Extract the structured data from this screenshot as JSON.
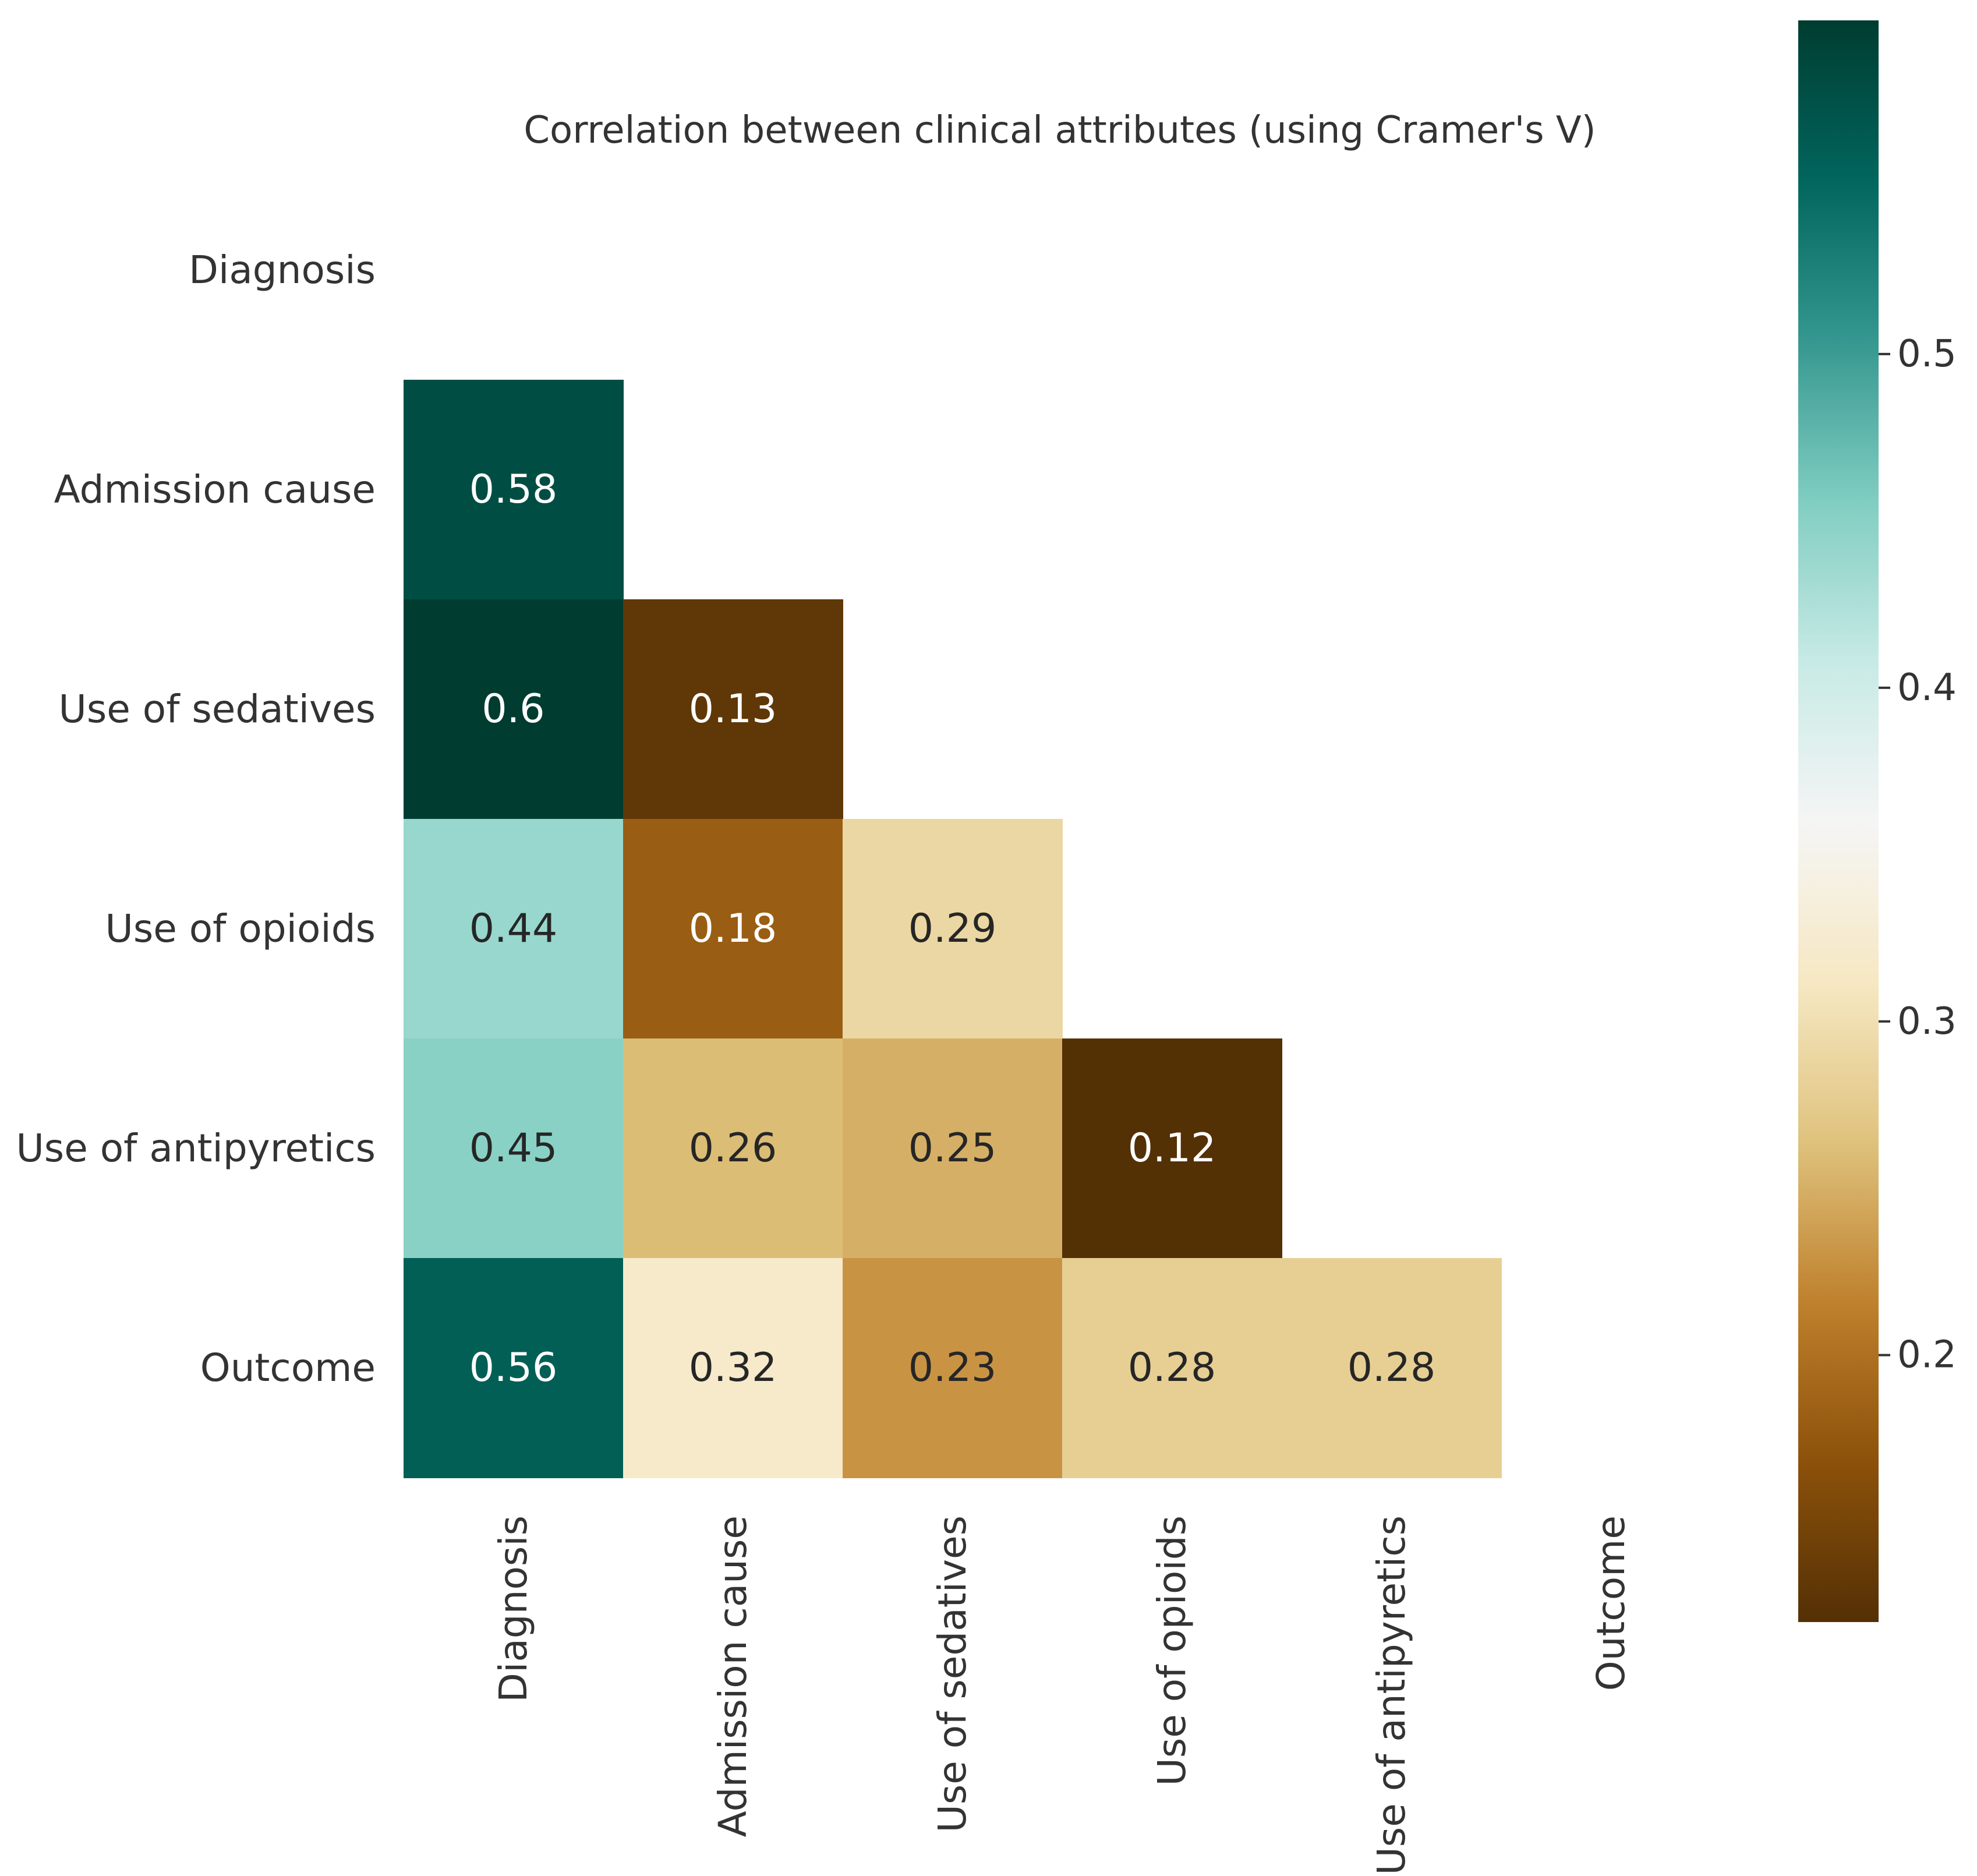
{
  "chart_data": {
    "type": "heatmap",
    "title": "Correlation between clinical attributes (using Cramer's V)",
    "variables": [
      "Diagnosis",
      "Admission cause",
      "Use of sedatives",
      "Use of opioids",
      "Use of antipyretics",
      "Outcome"
    ],
    "matrix": [
      [
        null,
        null,
        null,
        null,
        null,
        null
      ],
      [
        0.58,
        null,
        null,
        null,
        null,
        null
      ],
      [
        0.6,
        0.13,
        null,
        null,
        null,
        null
      ],
      [
        0.44,
        0.18,
        0.29,
        null,
        null,
        null
      ],
      [
        0.45,
        0.26,
        0.25,
        0.12,
        null,
        null
      ],
      [
        0.56,
        0.32,
        0.23,
        0.28,
        0.28,
        null
      ]
    ],
    "mask": "upper-triangle-including-diagonal",
    "colormap": "BrBG",
    "vmin": 0.12,
    "vmax": 0.6,
    "colorbar": {
      "ticks": [
        0.2,
        0.3,
        0.4,
        0.5
      ],
      "tick_labels": [
        "0.2",
        "0.3",
        "0.4",
        "0.5"
      ]
    },
    "annotations": true,
    "xlabel": "",
    "ylabel": ""
  }
}
